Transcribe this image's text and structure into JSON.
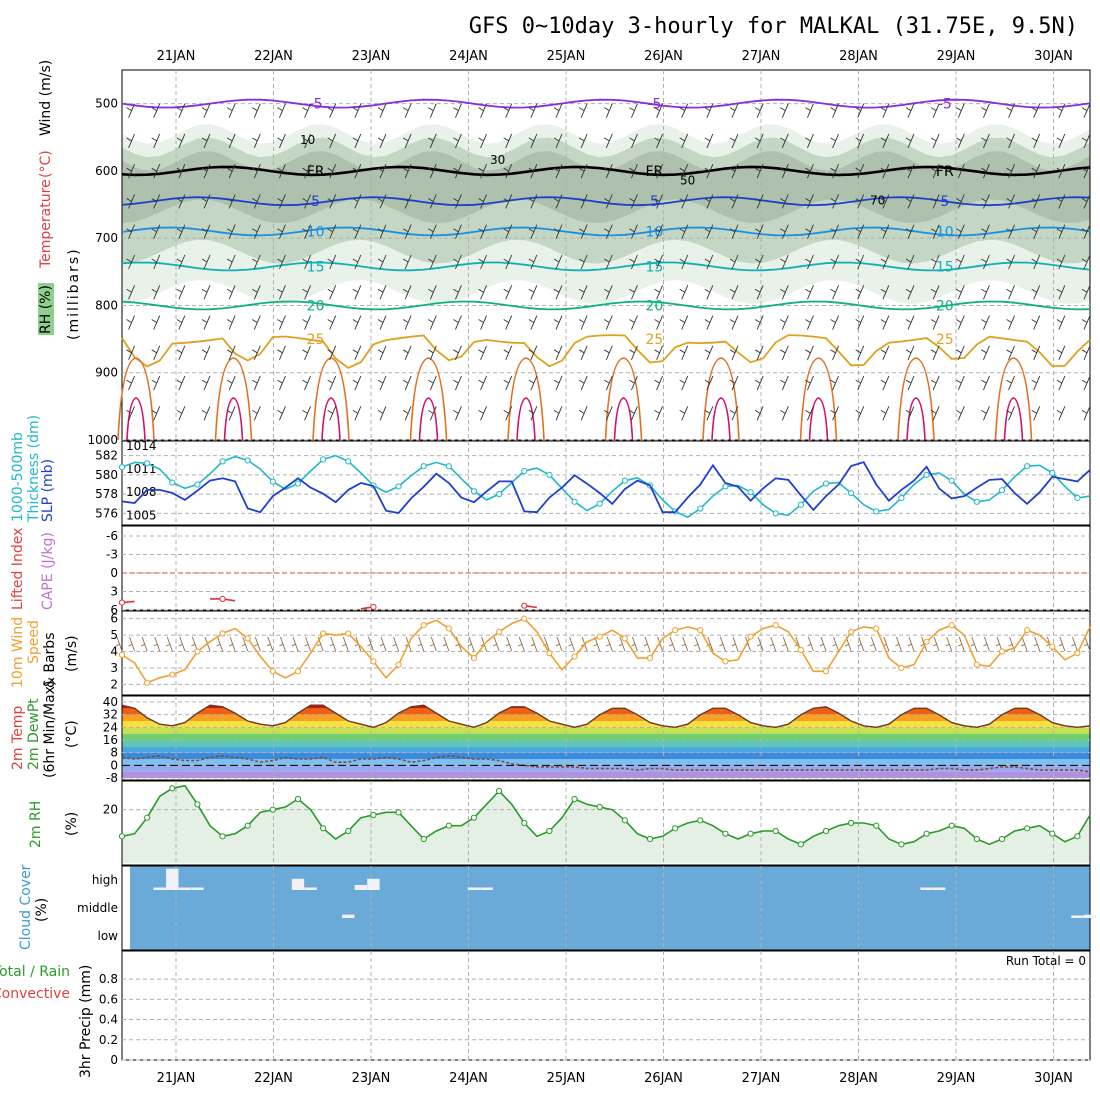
{
  "page": {
    "title": "GFS 0~10day 3-hourly for MALKAL (31.75E, 9.5N)"
  },
  "dates": [
    "21JAN",
    "22JAN",
    "23JAN",
    "24JAN",
    "25JAN",
    "26JAN",
    "27JAN",
    "28JAN",
    "29JAN",
    "30JAN"
  ],
  "labels": {
    "upper": {
      "rh": "RH (%)",
      "temperature": "Temperature",
      "temp_unit": "(°C)",
      "wind": "Wind (m/s)",
      "pressure": "(millibars)"
    },
    "thickness": {
      "line1": "1000-500mb",
      "line2": "Thickness (dm)",
      "slp": "SLP (mb)"
    },
    "lifted": {
      "lifted": "Lifted Index",
      "cape": "CAPE (J/kg)"
    },
    "wind10": {
      "line1": "10m Wind",
      "line2": "Speed",
      "line3": "& Barbs",
      "unit": "(m/s)"
    },
    "temp2m": {
      "line1": "2m Temp",
      "line2": "2m DewPt",
      "line3": "(6hr Min/Max)",
      "unit": "(°C)"
    },
    "rh2m": {
      "line1": "2m RH",
      "unit": "(%)"
    },
    "cloud": {
      "line1": "Cloud Cover",
      "unit": "(%)",
      "high": "high",
      "middle": "middle",
      "low": "low"
    },
    "precip": {
      "total": "Total / Rain",
      "conv": "Convective",
      "line": "3hr Precip (mm)",
      "run_total": "Run Total = 0"
    }
  },
  "colors": {
    "rh_shade": "#c8d8c8",
    "temp_line": "#1f3fd0",
    "thickness_line": "#20b8c8",
    "wind_line": "#f0a030",
    "rh_line": "#2a9a2a",
    "cloud_bg": "#6aaad8",
    "cloud_bar": "#f4f0f8",
    "lifted_line": "#e03030"
  },
  "chart_data": [
    {
      "id": "upper-air",
      "type": "contour",
      "ylabel": "millibars",
      "ylim": [
        1000,
        450
      ],
      "yticks": [
        500,
        600,
        700,
        800,
        900,
        1000
      ],
      "isotherms": [
        {
          "label": "-5",
          "pressure": 500,
          "color": "#8a2be2"
        },
        {
          "label": "FR",
          "pressure": 600,
          "color": "#000000"
        },
        {
          "label": "5",
          "pressure": 645,
          "color": "#1f3fd0"
        },
        {
          "label": "10",
          "pressure": 690,
          "color": "#1a90e0"
        },
        {
          "label": "15",
          "pressure": 742,
          "color": "#10b0b8"
        },
        {
          "label": "20",
          "pressure": 800,
          "color": "#10b080"
        },
        {
          "label": "25",
          "pressure": 850,
          "color": "#e0a020"
        }
      ],
      "rh_labels": [
        "10",
        "30",
        "50",
        "70"
      ]
    },
    {
      "id": "thickness-slp",
      "type": "line",
      "left_axis": {
        "label": "1000-500mb Thickness (dm)",
        "ticks": [
          576,
          578,
          580,
          582
        ],
        "ylim": [
          575,
          583
        ]
      },
      "right_axis": {
        "label": "SLP (mb)",
        "ticks": [
          1005,
          1008,
          1011,
          1014
        ],
        "ylim": [
          1004,
          1014
        ]
      },
      "series": [
        {
          "name": "Thickness",
          "axis": "left",
          "values": [
            580.8,
            581.3,
            581.2,
            580.6,
            579.2,
            578.6,
            579.0,
            580.1,
            581.4,
            581.9,
            581.5,
            580.6,
            579.3,
            578.5,
            579.1,
            580.4,
            581.6,
            582.0,
            581.4,
            580.2,
            578.9,
            578.2,
            578.8,
            579.9,
            580.9,
            581.3,
            580.9,
            579.6,
            578.3,
            577.4,
            578.0,
            579.2,
            580.4,
            580.7,
            580.0,
            578.6,
            577.2,
            576.3,
            577.0,
            578.3,
            579.4,
            579.7,
            578.9,
            577.4,
            576.2,
            575.6,
            576.5,
            577.8,
            578.8,
            578.9,
            578.2,
            576.9,
            576.0,
            575.8,
            576.9,
            578.3,
            579.1,
            579.2,
            578.1,
            576.9,
            576.2,
            576.4,
            577.6,
            579.0,
            580.0,
            580.2,
            579.4,
            578.0,
            577.2,
            577.4,
            578.4,
            579.8,
            580.9,
            581.0,
            580.2,
            578.8,
            577.6,
            577.8
          ]
        },
        {
          "name": "SLP",
          "axis": "right",
          "values": [
            1006.8,
            1006.6,
            1008.3,
            1008.3,
            1007.9,
            1007.0,
            1008.2,
            1009.5,
            1009.8,
            1009.4,
            1005.9,
            1005.4,
            1007.5,
            1008.6,
            1009.8,
            1008.6,
            1007.8,
            1006.7,
            1008.3,
            1009.2,
            1008.8,
            1005.6,
            1005.3,
            1007.2,
            1008.7,
            1010.4,
            1009.2,
            1007.3,
            1006.7,
            1008.1,
            1009.4,
            1009.4,
            1005.5,
            1005.4,
            1007.3,
            1008.6,
            1010.2,
            1009.1,
            1007.9,
            1006.5,
            1008.4,
            1009.5,
            1008.9,
            1005.4,
            1005.4,
            1007.3,
            1009.0,
            1011.5,
            1009.2,
            1008.7,
            1006.9,
            1008.5,
            1009.8,
            1009.6,
            1007.6,
            1005.7,
            1007.5,
            1009.0,
            1011.4,
            1011.9,
            1009.0,
            1006.9,
            1008.3,
            1009.5,
            1011.3,
            1008.5,
            1007.2,
            1007.5,
            1008.6,
            1009.6,
            1009.7,
            1007.9,
            1006.5,
            1008.0,
            1010.0,
            1009.7,
            1009.4,
            1010.9
          ]
        }
      ]
    },
    {
      "id": "lifted-cape",
      "type": "line",
      "ylabel": "Lifted Index",
      "ylim": [
        6,
        -6
      ],
      "yticks": [
        6,
        3,
        0,
        -3,
        -6
      ],
      "series": [
        {
          "name": "Lifted Index",
          "values": [
            4.8,
            4.6,
            null,
            null,
            null,
            null,
            null,
            4.2,
            4.2,
            4.5,
            null,
            null,
            null,
            null,
            null,
            null,
            null,
            null,
            null,
            5.8,
            5.5,
            null,
            null,
            null,
            null,
            null,
            null,
            null,
            null,
            null,
            null,
            null,
            5.3,
            5.6,
            null
          ]
        }
      ]
    },
    {
      "id": "wind10m",
      "type": "line",
      "ylabel": "Speed (m/s)",
      "ylim": [
        2,
        6
      ],
      "yticks": [
        2,
        3,
        4,
        5,
        6
      ],
      "series": [
        {
          "name": "10m wind speed",
          "values": [
            3.8,
            3.3,
            2.1,
            2.4,
            2.6,
            2.9,
            4.0,
            4.6,
            5.1,
            5.4,
            4.8,
            3.7,
            2.8,
            2.4,
            2.8,
            3.9,
            5.1,
            5.0,
            5.1,
            4.3,
            3.4,
            2.4,
            3.2,
            4.8,
            5.6,
            5.9,
            5.4,
            4.3,
            3.6,
            4.6,
            5.2,
            5.7,
            6.0,
            5.2,
            3.9,
            2.9,
            3.7,
            4.6,
            4.9,
            5.3,
            4.8,
            3.6,
            3.6,
            4.8,
            5.3,
            5.5,
            5.3,
            3.9,
            3.4,
            3.5,
            4.9,
            5.4,
            5.6,
            5.2,
            4.1,
            2.8,
            2.8,
            4.0,
            5.2,
            5.5,
            5.4,
            3.6,
            3.0,
            3.2,
            4.6,
            5.3,
            5.6,
            5.0,
            3.2,
            3.1,
            4.0,
            4.2,
            5.3,
            5.0,
            4.3,
            3.5,
            3.9,
            5.5
          ]
        }
      ]
    },
    {
      "id": "temp2m",
      "type": "area",
      "ylabel": "(°C)",
      "ylim": [
        -8,
        40
      ],
      "yticks": [
        -8,
        0,
        8,
        16,
        24,
        32,
        40
      ],
      "series": [
        {
          "name": "2m Temp",
          "values": [
            38,
            36,
            30,
            26,
            25,
            27,
            33,
            38,
            37,
            33,
            28,
            26,
            25,
            27,
            33,
            38,
            38,
            33,
            28,
            26,
            24,
            27,
            33,
            37,
            38,
            33,
            28,
            26,
            24,
            27,
            33,
            37,
            37,
            33,
            28,
            26,
            24,
            26,
            32,
            36,
            36,
            32,
            27,
            25,
            24,
            26,
            32,
            36,
            36,
            32,
            27,
            25,
            24,
            26,
            32,
            36,
            37,
            33,
            28,
            25,
            24,
            26,
            32,
            36,
            36,
            32,
            27,
            25,
            24,
            26,
            32,
            36,
            36,
            32,
            27,
            25,
            24,
            25
          ]
        },
        {
          "name": "2m DewPt",
          "values": [
            5,
            4,
            5,
            6,
            4,
            3,
            3,
            5,
            6,
            5,
            4,
            2,
            3,
            5,
            4,
            4,
            5,
            2,
            2,
            4,
            4,
            5,
            4,
            2,
            3,
            5,
            6,
            5,
            4,
            4,
            3,
            1,
            0,
            -1,
            -1,
            -1,
            -1,
            -2,
            -2,
            -2,
            -2,
            -3,
            -2,
            -2,
            -3,
            -3,
            -3,
            -3,
            -3,
            -3,
            -3,
            -3,
            -3,
            -3,
            -3,
            -3,
            -3,
            -3,
            -3,
            -3,
            -3,
            -3,
            -3,
            -3,
            -3,
            -2,
            -2,
            -3,
            -3,
            -2,
            -1,
            -1,
            -2,
            -3,
            -3,
            -3,
            -3,
            -4
          ]
        }
      ]
    },
    {
      "id": "rh2m",
      "type": "area",
      "ylabel": "(%)",
      "ylim": [
        0,
        30
      ],
      "yticks": [
        20
      ],
      "series": [
        {
          "name": "2m RH",
          "values": [
            10,
            11,
            17,
            25,
            28,
            29,
            22,
            14,
            10,
            11,
            14,
            19,
            20,
            21,
            24,
            20,
            13,
            9,
            12,
            17,
            18,
            19,
            19,
            14,
            9,
            12,
            14,
            14,
            17,
            22,
            27,
            22,
            15,
            10,
            12,
            17,
            24,
            22,
            21,
            20,
            16,
            11,
            9,
            10,
            13,
            15,
            16,
            14,
            11,
            9,
            11,
            12,
            12,
            9,
            7,
            10,
            12,
            14,
            15,
            15,
            14,
            9,
            7,
            8,
            11,
            12,
            14,
            13,
            9,
            7,
            9,
            12,
            13,
            14,
            11,
            8,
            10,
            18
          ]
        }
      ]
    },
    {
      "id": "cloud",
      "type": "bar",
      "levels": [
        "high",
        "middle",
        "low"
      ],
      "series": [
        {
          "name": "high",
          "values": [
            0,
            0,
            0,
            10,
            85,
            10,
            10,
            0,
            0,
            0,
            0,
            0,
            0,
            0,
            45,
            10,
            0,
            0,
            0,
            20,
            45,
            0,
            0,
            0,
            0,
            0,
            0,
            0,
            10,
            10,
            0,
            0,
            0,
            0,
            0,
            0,
            0,
            0,
            0,
            0,
            0,
            0,
            0,
            0,
            0,
            0,
            0,
            0,
            0,
            0,
            0,
            0,
            0,
            0,
            0,
            0,
            0,
            0,
            0,
            0,
            0,
            0,
            0,
            0,
            10,
            10,
            0,
            0,
            0,
            0,
            0,
            0,
            0,
            0,
            0,
            0,
            0,
            0
          ]
        },
        {
          "name": "middle",
          "values": [
            0,
            0,
            0,
            0,
            0,
            0,
            0,
            0,
            0,
            0,
            0,
            0,
            0,
            0,
            0,
            0,
            0,
            0,
            20,
            0,
            0,
            0,
            0,
            0,
            0,
            0,
            0,
            0,
            0,
            0,
            0,
            0,
            0,
            0,
            0,
            0,
            0,
            0,
            0,
            0,
            0,
            0,
            0,
            0,
            0,
            0,
            0,
            0,
            0,
            0,
            0,
            0,
            0,
            0,
            0,
            0,
            0,
            0,
            0,
            0,
            0,
            0,
            0,
            0,
            0,
            0,
            0,
            0,
            0,
            0,
            0,
            0,
            0,
            0,
            0,
            0,
            15,
            20
          ]
        }
      ]
    },
    {
      "id": "precip",
      "type": "bar",
      "ylabel": "3hr Precip (mm)",
      "ylim": [
        0,
        1
      ],
      "yticks": [
        0,
        0.2,
        0.4,
        0.6,
        0.8
      ],
      "values": []
    }
  ]
}
